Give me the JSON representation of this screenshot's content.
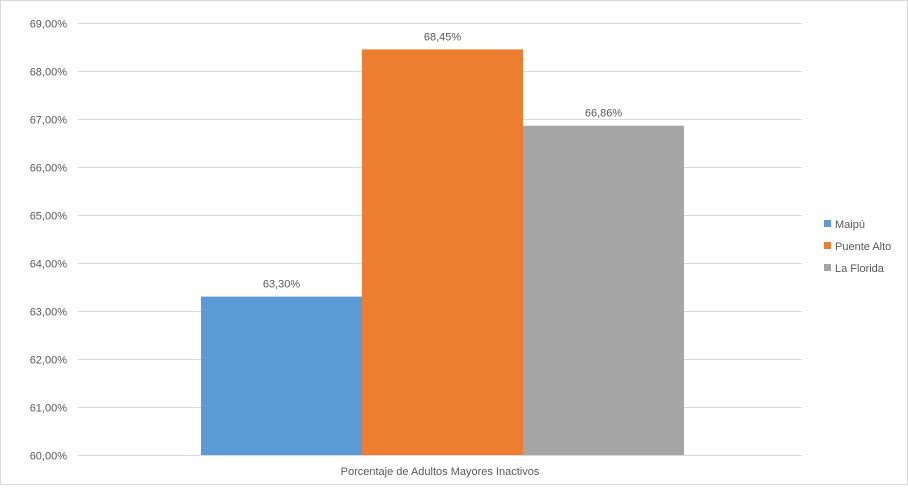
{
  "chart_data": {
    "type": "bar",
    "title": "",
    "xlabel": "",
    "ylabel": "",
    "categories": [
      "Porcentaje de Adultos Mayores Inactivos"
    ],
    "series": [
      {
        "name": "Maipú",
        "values": [
          63.3
        ],
        "label": "63,30%",
        "color": "#5b9bd5"
      },
      {
        "name": "Puente Alto",
        "values": [
          68.45
        ],
        "label": "68,45%",
        "color": "#ed7d31"
      },
      {
        "name": "La Florida",
        "values": [
          66.86
        ],
        "label": "66,86%",
        "color": "#a5a5a5"
      }
    ],
    "ylim": [
      60,
      69
    ],
    "yticks": [
      {
        "value": 60,
        "label": "60,00%"
      },
      {
        "value": 61,
        "label": "61,00%"
      },
      {
        "value": 62,
        "label": "62,00%"
      },
      {
        "value": 63,
        "label": "63,00%"
      },
      {
        "value": 64,
        "label": "64,00%"
      },
      {
        "value": 65,
        "label": "65,00%"
      },
      {
        "value": 66,
        "label": "66,00%"
      },
      {
        "value": 67,
        "label": "67,00%"
      },
      {
        "value": 68,
        "label": "68,00%"
      },
      {
        "value": 69,
        "label": "69,00%"
      }
    ],
    "grid": true,
    "legend_position": "right",
    "gridline_color": "#d9d9d9",
    "text_color": "#595959"
  }
}
